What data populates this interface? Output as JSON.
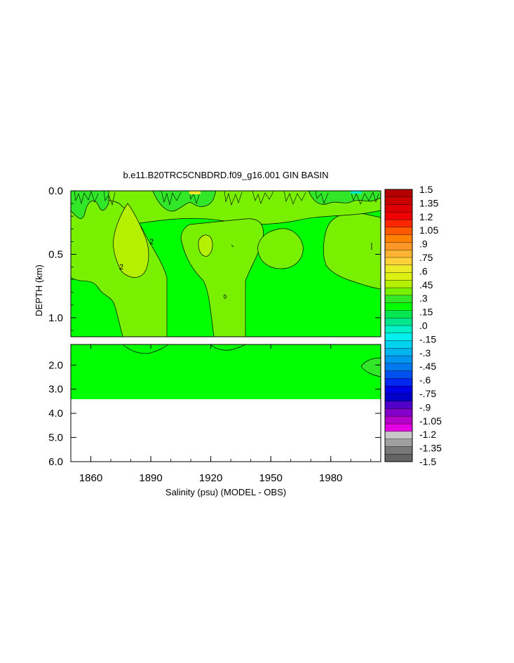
{
  "chart_data": {
    "type": "heatmap",
    "title": "b.e11.B20TRC5CNBDRD.f09_g16.001 GIN BASIN",
    "xlabel": "Salinity (psu) (MODEL - OBS)",
    "ylabel": "DEPTH (km)",
    "x_range": [
      1850,
      2005
    ],
    "x_ticks": [
      "1860",
      "1890",
      "1920",
      "1950",
      "1980"
    ],
    "upper_panel": {
      "ylim": [
        0.0,
        1.15
      ],
      "y_ticks": [
        "0.0",
        "0.5",
        "1.0"
      ]
    },
    "lower_panel": {
      "ylim": [
        1.15,
        6.0
      ],
      "y_ticks": [
        "2.0",
        "3.0",
        "4.0",
        "5.0",
        "6.0"
      ],
      "data_bottom_depth": 3.35
    },
    "contour_labels": [
      "2",
      "2"
    ],
    "colorbar": {
      "range": [
        -1.5,
        1.5
      ],
      "labels": [
        "1.5",
        "1.35",
        "1.2",
        "1.05",
        ".9",
        ".75",
        ".6",
        ".45",
        ".3",
        ".15",
        ".0",
        "-.15",
        "-.3",
        "-.45",
        "-.6",
        "-.75",
        "-.9",
        "-1.05",
        "-1.2",
        "-1.35",
        "-1.5"
      ],
      "colors": [
        "#b40000",
        "#c80000",
        "#dc0000",
        "#f00000",
        "#ff2800",
        "#ff5a00",
        "#ff8200",
        "#ff9628",
        "#ffb432",
        "#ffd23c",
        "#ebeb28",
        "#dcf014",
        "#b4f000",
        "#78f000",
        "#32e628",
        "#00ff00",
        "#00e650",
        "#00e68c",
        "#00f0c8",
        "#00f0f0",
        "#00d2f0",
        "#00b4f0",
        "#0096f0",
        "#0078f0",
        "#0050f0",
        "#0028f0",
        "#0000e6",
        "#0000c8",
        "#5000c8",
        "#8200c8",
        "#b400c8",
        "#e600e6",
        "#c8c8c8",
        "#a0a0a0",
        "#787878",
        "#646464"
      ]
    },
    "fields": {
      "background": "#00ff00",
      "high_cells": "#78f000",
      "higher_cells": "#b4f000",
      "low_cells": "#32e628"
    }
  }
}
